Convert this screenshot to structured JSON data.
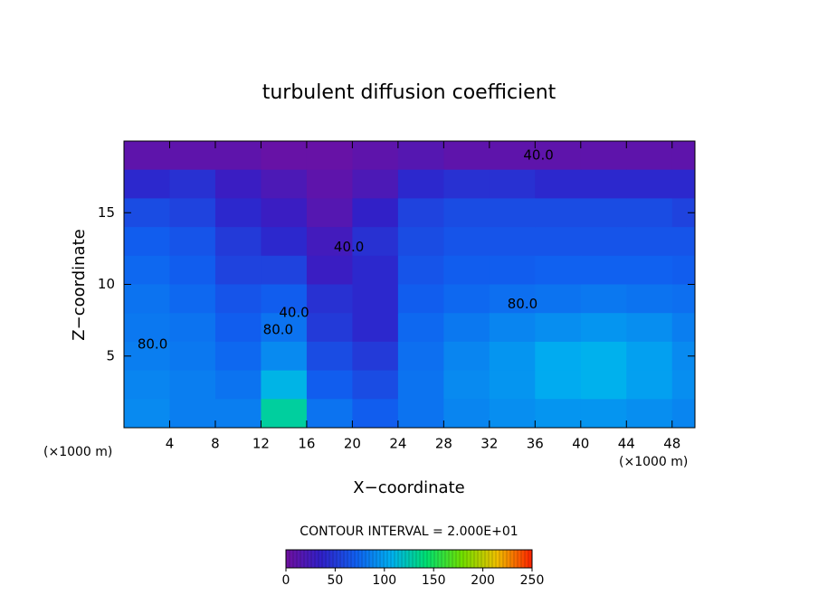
{
  "chart_data": {
    "type": "contour",
    "title": "turbulent diffusion coefficient",
    "x_label": "X−coordinate",
    "y_label": "Z−coordinate",
    "x_unit_labels": [
      "(×1000 m)",
      "(×1000 m)"
    ],
    "xlim": [
      0,
      50
    ],
    "ylim": [
      0,
      20
    ],
    "xticks": [
      4,
      8,
      12,
      16,
      20,
      24,
      28,
      32,
      36,
      40,
      44,
      48
    ],
    "yticks": [
      5,
      10,
      15
    ],
    "field": {
      "x": [
        2,
        6,
        10,
        14,
        18,
        22,
        26,
        30,
        34,
        38,
        42,
        46,
        50
      ],
      "z": [
        19,
        17,
        15,
        13,
        11,
        9,
        7,
        5,
        3,
        1
      ],
      "values": [
        [
          10,
          10,
          10,
          5,
          5,
          10,
          15,
          10,
          10,
          10,
          10,
          10,
          10
        ],
        [
          40,
          45,
          30,
          20,
          10,
          20,
          40,
          45,
          45,
          40,
          40,
          40,
          40
        ],
        [
          60,
          55,
          40,
          30,
          15,
          35,
          55,
          60,
          60,
          60,
          60,
          60,
          55
        ],
        [
          70,
          65,
          50,
          40,
          25,
          45,
          60,
          65,
          65,
          65,
          65,
          65,
          65
        ],
        [
          75,
          70,
          55,
          55,
          30,
          40,
          65,
          70,
          70,
          72,
          72,
          72,
          70
        ],
        [
          80,
          75,
          65,
          70,
          45,
          40,
          70,
          75,
          78,
          80,
          82,
          80,
          78
        ],
        [
          82,
          80,
          70,
          80,
          50,
          40,
          75,
          82,
          88,
          92,
          95,
          92,
          85
        ],
        [
          85,
          82,
          75,
          90,
          60,
          50,
          78,
          88,
          95,
          105,
          108,
          100,
          90
        ],
        [
          88,
          85,
          80,
          110,
          70,
          60,
          80,
          90,
          95,
          105,
          108,
          100,
          92
        ],
        [
          90,
          85,
          85,
          130,
          80,
          70,
          80,
          88,
          92,
          95,
          95,
          92,
          88
        ]
      ]
    },
    "contour_labels": [
      {
        "x": 36.3,
        "z": 19.0,
        "value": 40,
        "label": "40.0"
      },
      {
        "x": 19.7,
        "z": 12.6,
        "value": 40,
        "label": "40.0"
      },
      {
        "x": 14.9,
        "z": 8.0,
        "value": 40,
        "label": "40.0"
      },
      {
        "x": 13.5,
        "z": 6.8,
        "value": 80,
        "label": "80.0"
      },
      {
        "x": 34.9,
        "z": 8.6,
        "value": 80,
        "label": "80.0"
      },
      {
        "x": 2.5,
        "z": 5.8,
        "value": 80,
        "label": "80.0"
      }
    ],
    "contour_interval_label": "CONTOUR INTERVAL = 2.000E+01",
    "clim": [
      0,
      250
    ],
    "colorbar_ticks": [
      0,
      50,
      100,
      150,
      200,
      250
    ],
    "colormap": [
      "#7010a0",
      "#3020c8",
      "#1060f0",
      "#00b0f0",
      "#00e070",
      "#70e000",
      "#f0c000",
      "#ff2000"
    ]
  }
}
